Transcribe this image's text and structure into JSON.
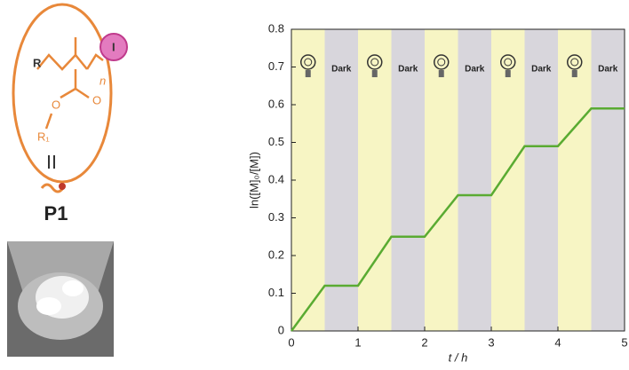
{
  "structure_labels": {
    "end_group": "R",
    "repeat": "n",
    "iodine": "I",
    "carbonyl_oxygen": "O",
    "ester_oxygen": "O",
    "side_group": "R₁",
    "compound": "P1"
  },
  "chart_data": {
    "type": "line",
    "x_label": "t / h",
    "y_label": "ln([M]₀/[M])",
    "x": [
      0,
      0.5,
      1.0,
      1.5,
      2.0,
      2.5,
      3.0,
      3.5,
      4.0,
      4.5,
      5.0
    ],
    "series": [
      {
        "color": "#5aab32",
        "values": [
          0,
          0.12,
          0.12,
          0.25,
          0.25,
          0.36,
          0.36,
          0.49,
          0.49,
          0.59,
          0.59
        ]
      }
    ],
    "annotations": [
      "Dark",
      "Dark",
      "Dark",
      "Dark",
      "Dark"
    ],
    "xlim": [
      0,
      5
    ],
    "ylim": [
      0,
      0.8
    ],
    "xticks": [
      0,
      1,
      2,
      3,
      4,
      5
    ],
    "yticks": [
      0,
      0.1,
      0.2,
      0.3,
      0.4,
      0.5,
      0.6,
      0.7,
      0.8
    ]
  }
}
